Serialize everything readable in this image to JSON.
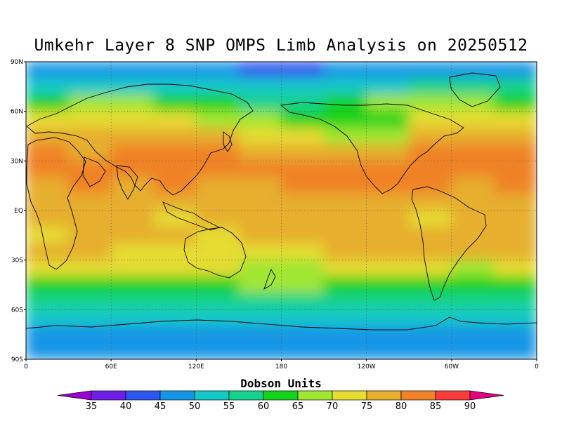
{
  "title": "Umkehr Layer 8 SNP OMPS Limb Analysis on 20250512",
  "lat_labels": [
    "90N",
    "60N",
    "30N",
    "EQ",
    "30S",
    "60S",
    "90S"
  ],
  "lon_labels": [
    "0",
    "60E",
    "120E",
    "180",
    "120W",
    "60W",
    "0"
  ],
  "colorbar": {
    "title": "Dobson Units",
    "levels": [
      "35",
      "40",
      "45",
      "50",
      "55",
      "60",
      "65",
      "70",
      "75",
      "80",
      "85",
      "90"
    ],
    "colors": [
      "#9c00d2",
      "#6e1ee6",
      "#2d55f0",
      "#1496e6",
      "#14c8c8",
      "#14d28c",
      "#14d21e",
      "#a0e632",
      "#e6dc32",
      "#e6af2d",
      "#f08228",
      "#fa3c3c",
      "#e6007d"
    ]
  },
  "chart_data": {
    "type": "heatmap",
    "title": "Umkehr Layer 8 SNP OMPS Limb Analysis on 20250512",
    "colorbar_label": "Dobson Units",
    "units": "Dobson Units",
    "xlim": [
      0,
      360
    ],
    "ylim": [
      -90,
      90
    ],
    "grid": true,
    "rows_lat": [
      85,
      75,
      65,
      55,
      45,
      35,
      25,
      15,
      5,
      -5,
      -15,
      -25,
      -35,
      -45,
      -55,
      -65,
      -75,
      -85
    ],
    "cols_lon": [
      15,
      45,
      75,
      105,
      135,
      165,
      195,
      225,
      255,
      285,
      315,
      345
    ],
    "values": [
      [
        45,
        45,
        45,
        45,
        45,
        40,
        40,
        45,
        45,
        45,
        45,
        45
      ],
      [
        50,
        50,
        50,
        50,
        50,
        50,
        50,
        50,
        50,
        55,
        55,
        55
      ],
      [
        60,
        65,
        65,
        60,
        60,
        55,
        55,
        60,
        65,
        65,
        65,
        60
      ],
      [
        70,
        70,
        70,
        70,
        65,
        65,
        60,
        60,
        60,
        70,
        70,
        70
      ],
      [
        75,
        75,
        75,
        75,
        75,
        70,
        70,
        65,
        65,
        75,
        75,
        75
      ],
      [
        80,
        75,
        80,
        80,
        80,
        75,
        75,
        75,
        75,
        80,
        80,
        80
      ],
      [
        80,
        80,
        80,
        80,
        80,
        80,
        80,
        80,
        80,
        80,
        80,
        80
      ],
      [
        75,
        80,
        75,
        80,
        75,
        75,
        80,
        80,
        80,
        80,
        75,
        80
      ],
      [
        75,
        75,
        75,
        75,
        75,
        75,
        75,
        75,
        75,
        75,
        75,
        75
      ],
      [
        75,
        75,
        75,
        70,
        75,
        75,
        75,
        75,
        75,
        70,
        75,
        75
      ],
      [
        70,
        75,
        75,
        75,
        70,
        75,
        75,
        75,
        75,
        75,
        75,
        75
      ],
      [
        75,
        75,
        70,
        70,
        70,
        70,
        70,
        75,
        75,
        75,
        75,
        75
      ],
      [
        70,
        70,
        70,
        70,
        70,
        65,
        65,
        70,
        70,
        70,
        65,
        70
      ],
      [
        60,
        60,
        60,
        60,
        60,
        65,
        65,
        60,
        60,
        60,
        60,
        60
      ],
      [
        55,
        55,
        55,
        55,
        55,
        55,
        55,
        55,
        55,
        55,
        55,
        55
      ],
      [
        50,
        50,
        50,
        50,
        50,
        50,
        50,
        50,
        50,
        50,
        50,
        50
      ],
      [
        45,
        45,
        45,
        45,
        45,
        45,
        45,
        45,
        45,
        45,
        45,
        45
      ],
      [
        45,
        45,
        45,
        45,
        45,
        45,
        45,
        45,
        45,
        45,
        45,
        45
      ]
    ]
  }
}
